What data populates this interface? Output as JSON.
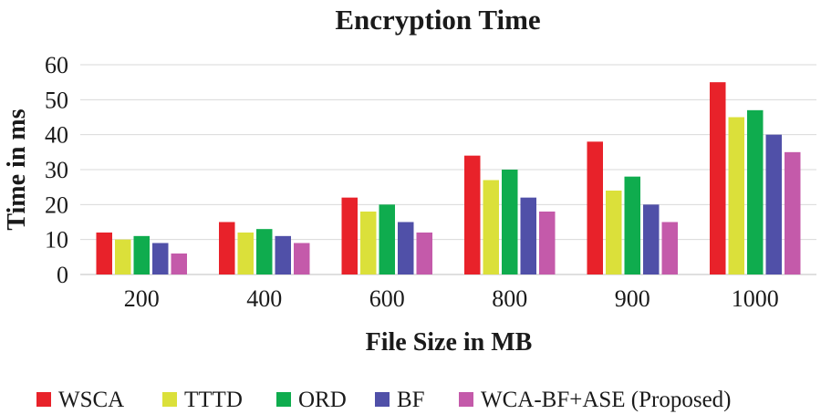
{
  "chart_data": {
    "type": "bar",
    "title": "Encryption Time",
    "xlabel": "File Size in MB",
    "ylabel": "Time in ms",
    "categories": [
      "200",
      "400",
      "600",
      "800",
      "900",
      "1000"
    ],
    "ylim": [
      0,
      60
    ],
    "yticks": [
      0,
      10,
      20,
      30,
      40,
      50,
      60
    ],
    "grid": true,
    "legend_position": "bottom",
    "series": [
      {
        "name": "WSCA",
        "color": "#e8222a",
        "values": [
          12,
          15,
          22,
          34,
          38,
          55
        ]
      },
      {
        "name": "TTTD",
        "color": "#dbe03a",
        "values": [
          10,
          12,
          18,
          27,
          24,
          45
        ]
      },
      {
        "name": "ORD",
        "color": "#0fac4e",
        "values": [
          11,
          13,
          20,
          30,
          28,
          47
        ]
      },
      {
        "name": "BF",
        "color": "#5050a8",
        "values": [
          9,
          11,
          15,
          22,
          20,
          40
        ]
      },
      {
        "name": "WCA-BF+ASE (Proposed)",
        "color": "#c45aaa",
        "values": [
          6,
          9,
          12,
          18,
          15,
          35
        ]
      }
    ]
  }
}
